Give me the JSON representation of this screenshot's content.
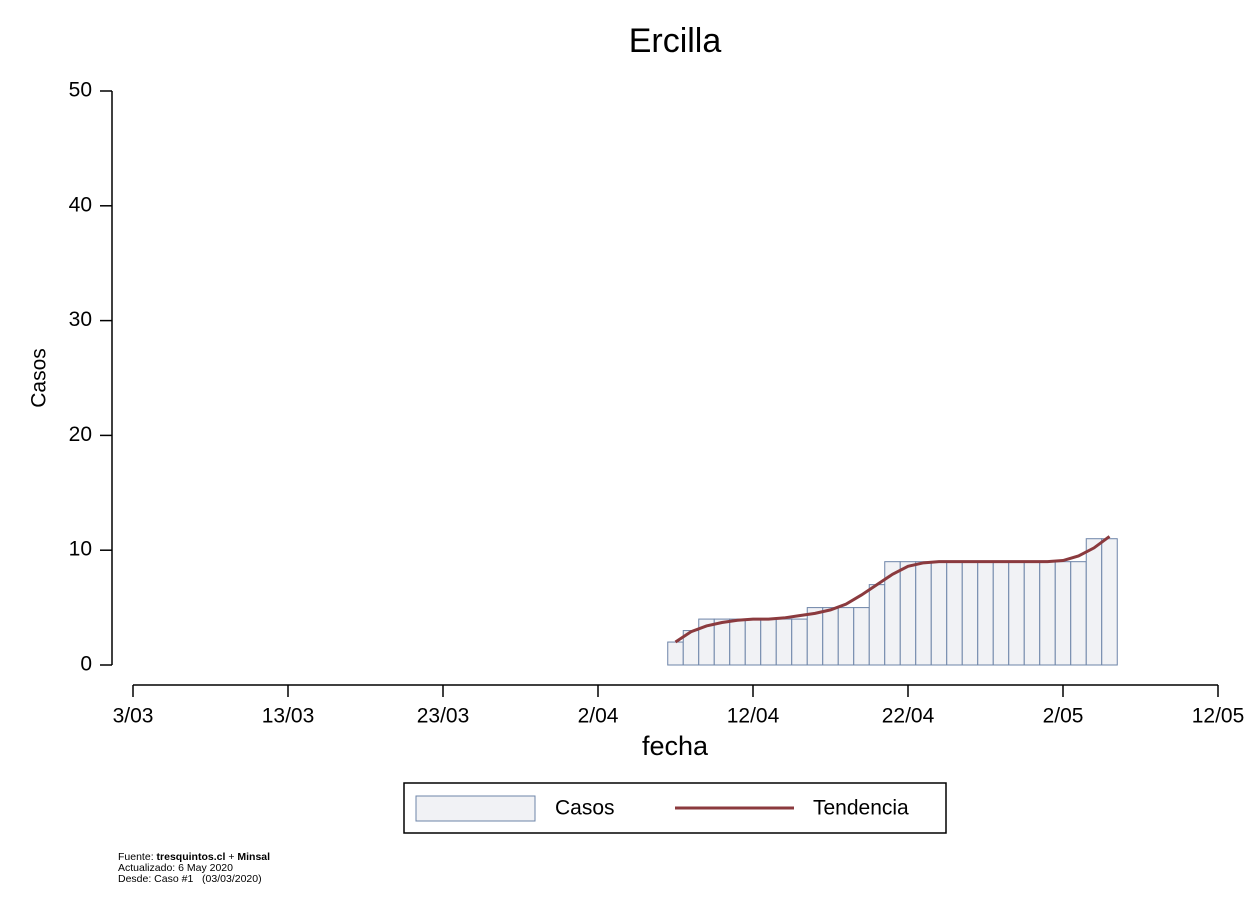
{
  "chart_data": {
    "type": "bar",
    "title": "Ercilla",
    "x_label": "fecha",
    "y_label": "Casos",
    "x": [
      "7/04",
      "8/04",
      "9/04",
      "10/04",
      "11/04",
      "12/04",
      "13/04",
      "14/04",
      "15/04",
      "16/04",
      "17/04",
      "18/04",
      "19/04",
      "20/04",
      "21/04",
      "22/04",
      "23/04",
      "24/04",
      "25/04",
      "26/04",
      "27/04",
      "28/04",
      "29/04",
      "30/04",
      "1/05",
      "2/05",
      "3/05",
      "4/05",
      "5/05"
    ],
    "series": [
      {
        "name": "Casos",
        "type": "bar",
        "color": "#f1f2f5",
        "edge_color": "#6d84a8",
        "values": [
          2,
          3,
          4,
          4,
          4,
          4,
          4,
          4,
          4,
          5,
          5,
          5,
          5,
          7,
          9,
          9,
          9,
          9,
          9,
          9,
          9,
          9,
          9,
          9,
          9,
          9,
          9,
          11,
          11
        ]
      },
      {
        "name": "Tendencia",
        "type": "line",
        "color": "#8b3a3e",
        "values": [
          2,
          2.9,
          3.4,
          3.7,
          3.9,
          4,
          4,
          4.1,
          4.3,
          4.5,
          4.8,
          5.3,
          6.1,
          7,
          7.9,
          8.6,
          8.9,
          9,
          9,
          9,
          9,
          9,
          9,
          9,
          9,
          9.1,
          9.5,
          10.2,
          11.2
        ]
      }
    ],
    "xlim": [
      "3/03",
      "12/05"
    ],
    "xticks": [
      "3/03",
      "13/03",
      "23/03",
      "2/04",
      "12/04",
      "22/04",
      "2/05",
      "12/05"
    ],
    "ylim": [
      0,
      50
    ],
    "yticks": [
      0,
      10,
      20,
      30,
      40,
      50
    ]
  },
  "footer": {
    "source_label": "Fuente:",
    "source_site": "tresquintos.cl",
    "source_plus": "+",
    "source_org": "Minsal",
    "updated": "Actualizado: 6 May 2020",
    "since": "Desde: Caso #1   (03/03/2020)"
  }
}
